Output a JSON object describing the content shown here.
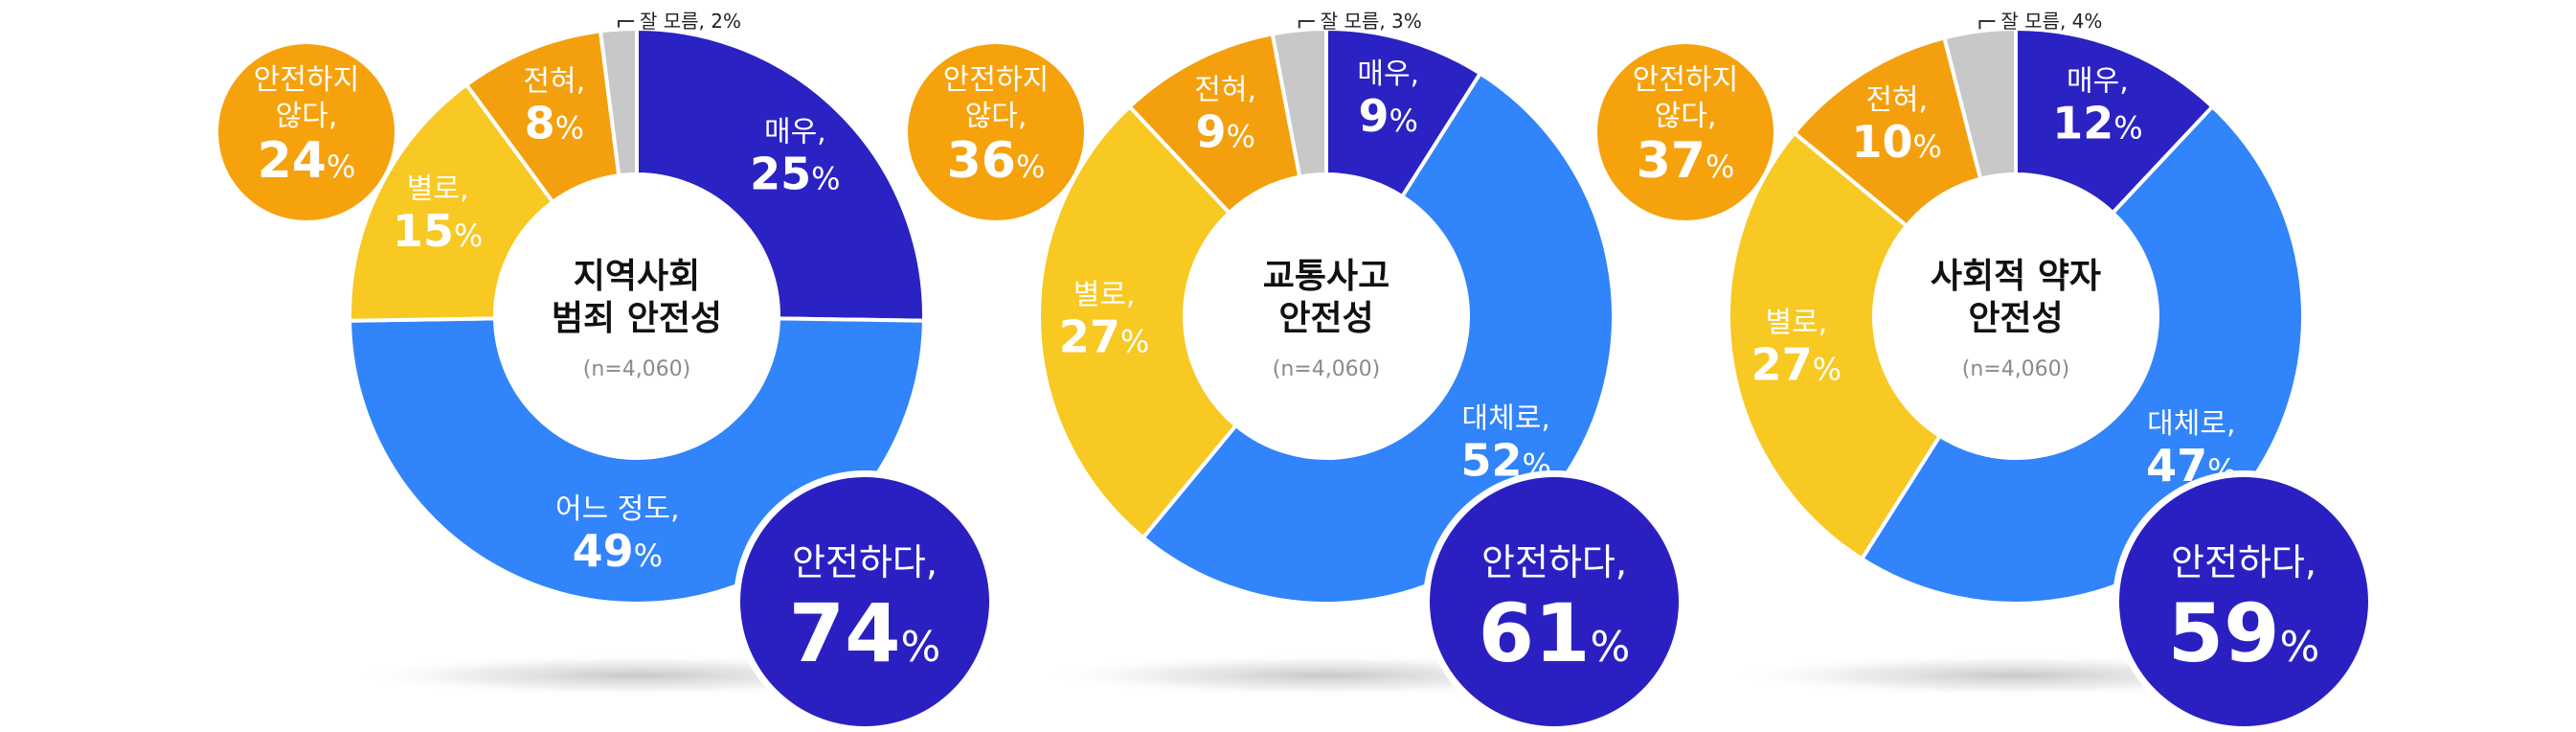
{
  "colors": {
    "very_safe": "#2b22c3",
    "mostly_safe": "#3184f9",
    "not_very_safe": "#f8c823",
    "not_at_all_safe": "#f4a00e",
    "dont_know": "#c8c8c8",
    "unsafe_badge": "#f6a20d",
    "safe_badge": "#2a20c2"
  },
  "chart_data": [
    {
      "type": "donut",
      "title_lines": [
        "지역사회",
        "범죄 안전성"
      ],
      "sample": "(n=4,060)",
      "unit": "%",
      "segments": [
        {
          "key": "very_safe",
          "label": "매우,",
          "value": 25
        },
        {
          "key": "mostly_safe",
          "label": "어느 정도,",
          "value": 49
        },
        {
          "key": "not_very_safe",
          "label": "별로,",
          "value": 15
        },
        {
          "key": "not_at_all_safe",
          "label": "전혀,",
          "value": 8
        },
        {
          "key": "dont_know",
          "label": "잘 모름, 2%",
          "value": 2
        }
      ],
      "unsafe_total": {
        "label_lines": [
          "안전하지",
          "않다,"
        ],
        "value": 24
      },
      "safe_total": {
        "label": "안전하다,",
        "value": 74
      }
    },
    {
      "type": "donut",
      "title_lines": [
        "교통사고",
        "안전성"
      ],
      "sample": "(n=4,060)",
      "unit": "%",
      "segments": [
        {
          "key": "very_safe",
          "label": "매우,",
          "value": 9
        },
        {
          "key": "mostly_safe",
          "label": "대체로,",
          "value": 52
        },
        {
          "key": "not_very_safe",
          "label": "별로,",
          "value": 27
        },
        {
          "key": "not_at_all_safe",
          "label": "전혀,",
          "value": 9
        },
        {
          "key": "dont_know",
          "label": "잘 모름, 3%",
          "value": 3
        }
      ],
      "unsafe_total": {
        "label_lines": [
          "안전하지",
          "않다,"
        ],
        "value": 36
      },
      "safe_total": {
        "label": "안전하다,",
        "value": 61
      }
    },
    {
      "type": "donut",
      "title_lines": [
        "사회적 약자",
        "안전성"
      ],
      "sample": "(n=4,060)",
      "unit": "%",
      "segments": [
        {
          "key": "very_safe",
          "label": "매우,",
          "value": 12
        },
        {
          "key": "mostly_safe",
          "label": "대체로,",
          "value": 47
        },
        {
          "key": "not_very_safe",
          "label": "별로,",
          "value": 27
        },
        {
          "key": "not_at_all_safe",
          "label": "전혀,",
          "value": 10
        },
        {
          "key": "dont_know",
          "label": "잘 모름, 4%",
          "value": 4
        }
      ],
      "unsafe_total": {
        "label_lines": [
          "안전하지",
          "않다,"
        ],
        "value": 37
      },
      "safe_total": {
        "label": "안전하다,",
        "value": 59
      }
    }
  ]
}
